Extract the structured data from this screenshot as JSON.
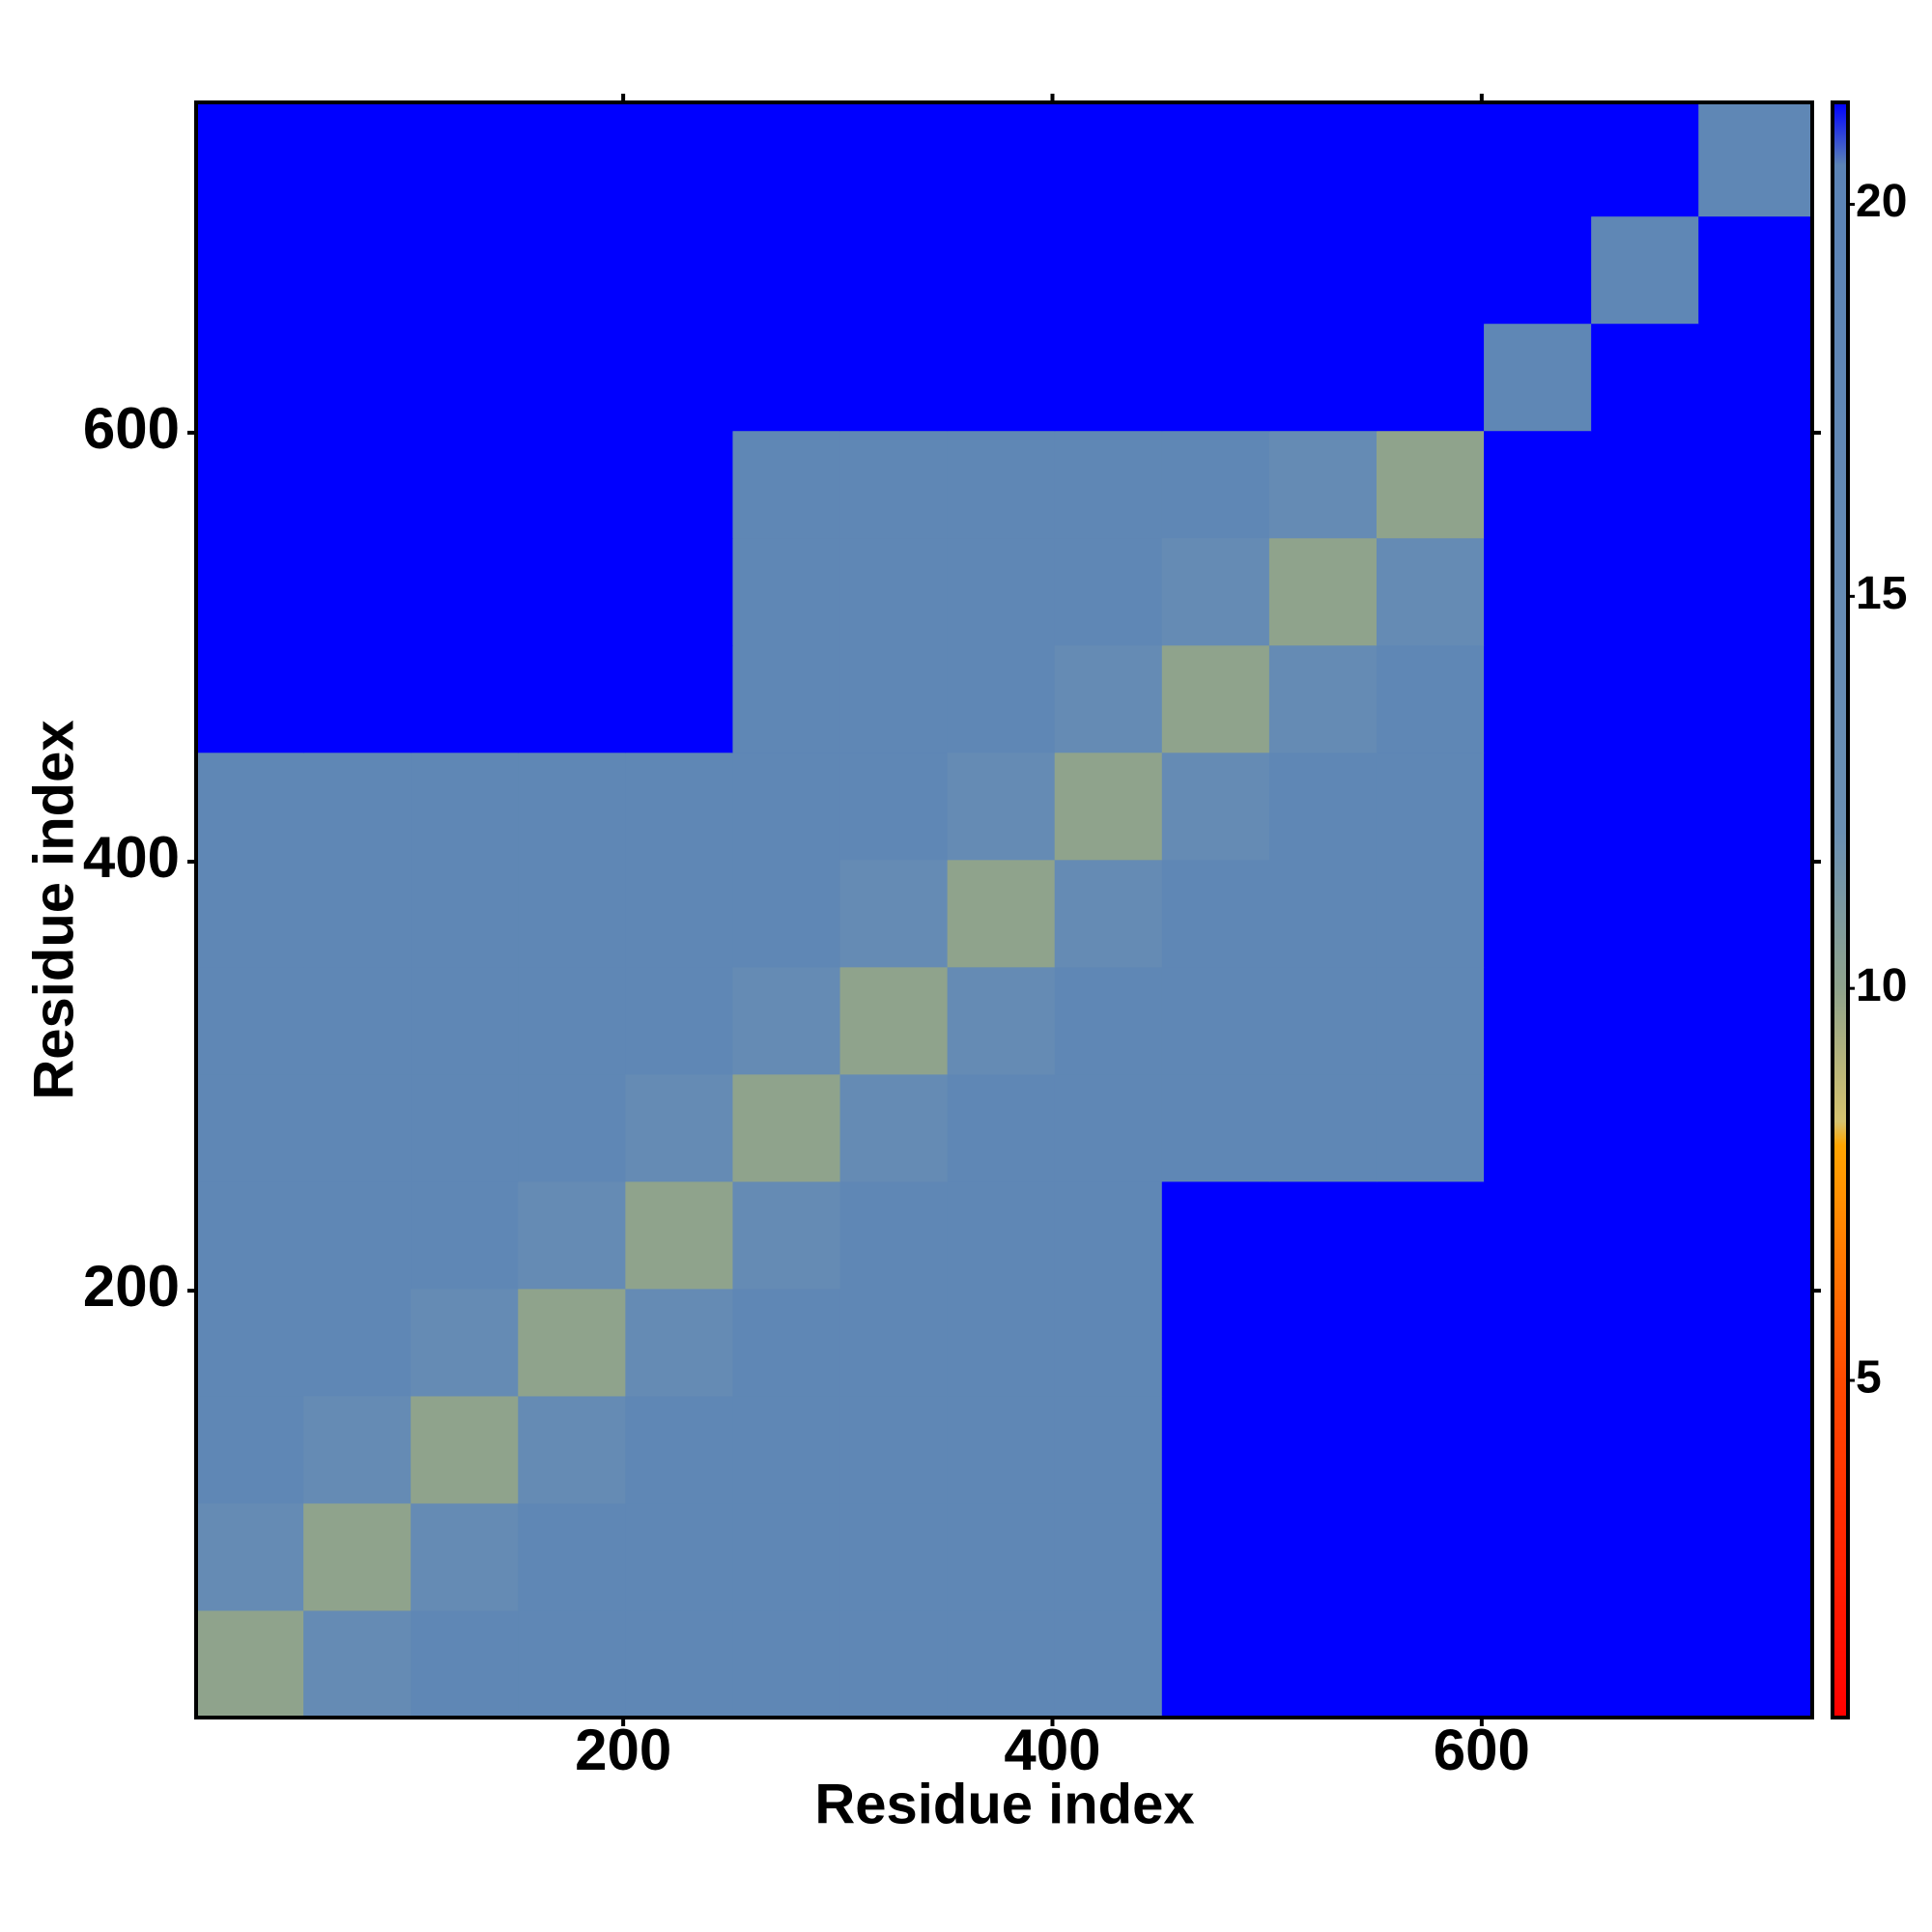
{
  "chart_data": {
    "type": "heatmap",
    "xlabel": "Residue index",
    "ylabel": "Residue index",
    "xlim": [
      1,
      754
    ],
    "ylim": [
      1,
      754
    ],
    "xticks": [
      200,
      400,
      600
    ],
    "yticks": [
      200,
      400,
      600
    ],
    "bins": [
      1,
      51,
      101,
      151,
      201,
      251,
      301,
      351,
      401,
      451,
      501,
      551,
      601,
      651,
      701,
      754
    ],
    "z": [
      [
        10,
        15,
        18,
        18,
        18,
        18,
        18,
        18,
        18,
        21.3,
        21.3,
        21.3,
        21.3,
        21.3,
        21.3
      ],
      [
        15,
        10,
        15,
        18,
        18,
        18,
        18,
        18,
        18,
        21.3,
        21.3,
        21.3,
        21.3,
        21.3,
        21.3
      ],
      [
        18,
        15,
        10,
        15,
        18,
        18,
        18,
        18,
        18,
        21.3,
        21.3,
        21.3,
        21.3,
        21.3,
        21.3
      ],
      [
        18,
        18,
        15,
        10,
        15,
        18,
        18,
        18,
        18,
        21.3,
        21.3,
        21.3,
        21.3,
        21.3,
        21.3
      ],
      [
        18,
        18,
        18,
        15,
        10,
        15,
        18,
        18,
        18,
        21.3,
        21.3,
        21.3,
        21.3,
        21.3,
        21.3
      ],
      [
        18,
        18,
        18,
        18,
        15,
        10,
        15,
        18,
        18,
        18,
        18,
        18,
        21.3,
        21.3,
        21.3
      ],
      [
        18,
        18,
        18,
        18,
        18,
        15,
        10,
        15,
        18,
        18,
        18,
        18,
        21.3,
        21.3,
        21.3
      ],
      [
        18,
        18,
        18,
        18,
        18,
        18,
        15,
        10,
        15,
        18,
        18,
        18,
        21.3,
        21.3,
        21.3
      ],
      [
        18,
        18,
        18,
        18,
        18,
        18,
        18,
        15,
        10,
        15,
        18,
        18,
        21.3,
        21.3,
        21.3
      ],
      [
        21.3,
        21.3,
        21.3,
        21.3,
        21.3,
        18,
        18,
        18,
        15,
        10,
        15,
        18,
        21.3,
        21.3,
        21.3
      ],
      [
        21.3,
        21.3,
        21.3,
        21.3,
        21.3,
        18,
        18,
        18,
        18,
        15,
        10,
        15,
        21.3,
        21.3,
        21.3
      ],
      [
        21.3,
        21.3,
        21.3,
        21.3,
        21.3,
        18,
        18,
        18,
        18,
        18,
        15,
        10,
        21.3,
        21.3,
        21.3
      ],
      [
        21.3,
        21.3,
        21.3,
        21.3,
        21.3,
        21.3,
        21.3,
        21.3,
        21.3,
        21.3,
        21.3,
        21.3,
        18,
        21.3,
        21.3
      ],
      [
        21.3,
        21.3,
        21.3,
        21.3,
        21.3,
        21.3,
        21.3,
        21.3,
        21.3,
        21.3,
        21.3,
        21.3,
        21.3,
        18,
        21.3
      ],
      [
        21.3,
        21.3,
        21.3,
        21.3,
        21.3,
        21.3,
        21.3,
        21.3,
        21.3,
        21.3,
        21.3,
        21.3,
        21.3,
        21.3,
        18
      ]
    ],
    "colorscale": [
      [
        0.7,
        "#ff0000"
      ],
      [
        5,
        "#ff4a00"
      ],
      [
        8,
        "#ffa500"
      ],
      [
        8.3,
        "#d6c36e"
      ],
      [
        10,
        "#8fa38c"
      ],
      [
        12,
        "#6a8fb3"
      ],
      [
        20.5,
        "#5b83b6"
      ],
      [
        21.3,
        "#0000ff"
      ]
    ],
    "colorbar": {
      "lim": [
        0.7,
        21.3
      ],
      "ticks": [
        5,
        10,
        15,
        20
      ]
    }
  }
}
